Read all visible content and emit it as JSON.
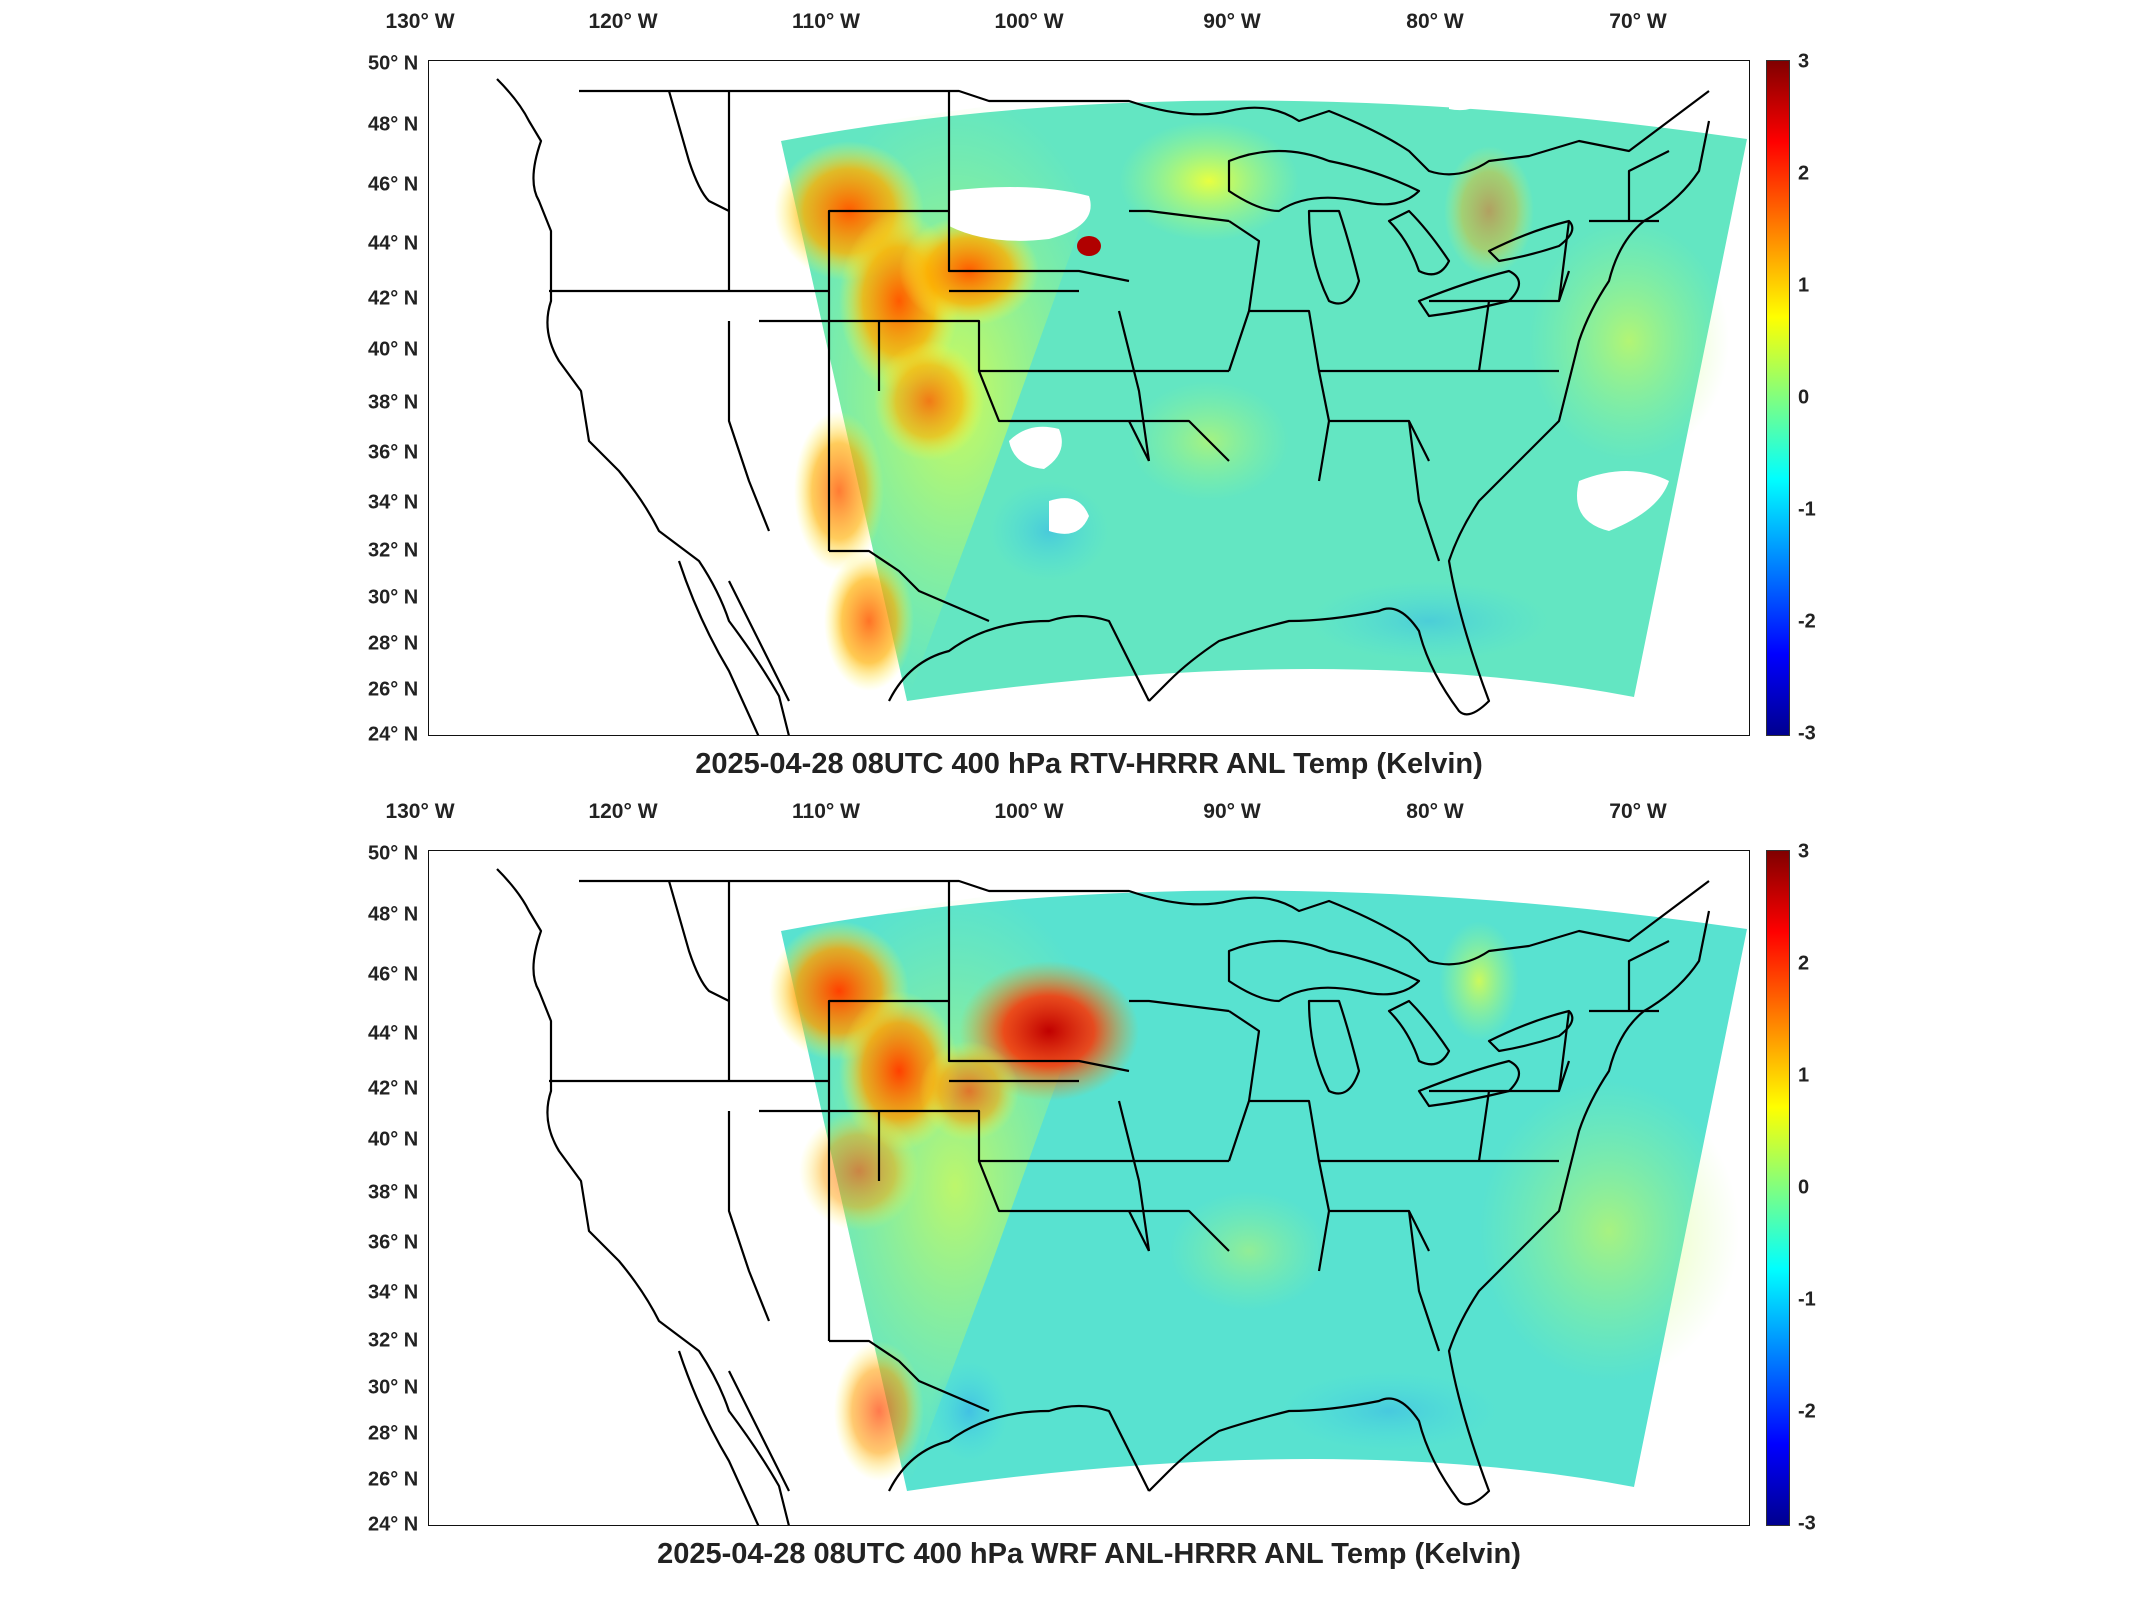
{
  "panels": [
    {
      "id": "top",
      "title": "2025-04-28 08UTC 400 hPa RTV-HRRR ANL Temp (Kelvin)",
      "lon_labels": [
        "130° W",
        "120° W",
        "110° W",
        "100° W",
        "90° W",
        "80° W",
        "70° W"
      ],
      "lat_labels": [
        "50° N",
        "48° N",
        "46° N",
        "44° N",
        "42° N",
        "40° N",
        "38° N",
        "36° N",
        "34° N",
        "32° N",
        "30° N",
        "28° N",
        "26° N",
        "24° N"
      ],
      "colorbar": {
        "ticks": [
          "3",
          "2",
          "1",
          "0",
          "-1",
          "-2",
          "-3"
        ],
        "min": -3,
        "max": 3,
        "colormap": "jet"
      },
      "map_style": "rtv"
    },
    {
      "id": "bottom",
      "title": "2025-04-28 08UTC 400 hPa WRF ANL-HRRR ANL Temp (Kelvin)",
      "lon_labels": [
        "130° W",
        "120° W",
        "110° W",
        "100° W",
        "90° W",
        "80° W",
        "70° W"
      ],
      "lat_labels": [
        "50° N",
        "48° N",
        "46° N",
        "44° N",
        "42° N",
        "40° N",
        "38° N",
        "36° N",
        "34° N",
        "32° N",
        "30° N",
        "28° N",
        "26° N",
        "24° N"
      ],
      "colorbar": {
        "ticks": [
          "3",
          "2",
          "1",
          "0",
          "-1",
          "-2",
          "-3"
        ],
        "min": -3,
        "max": 3,
        "colormap": "jet"
      },
      "map_style": "wrf"
    }
  ],
  "colors": {
    "ocean_bg": "#ffffff",
    "field_base": "#5ce6c8",
    "border": "#000000"
  }
}
